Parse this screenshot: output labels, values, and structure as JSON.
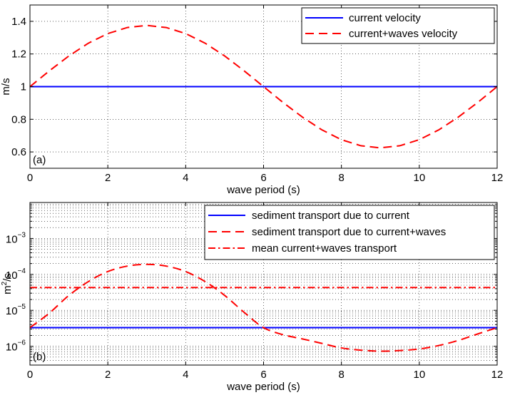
{
  "chart_data": [
    {
      "type": "line",
      "panel_label": "(a)",
      "xlabel": "wave period (s)",
      "ylabel": "m/s",
      "xlim": [
        0,
        12
      ],
      "ylim": [
        0.5,
        1.5
      ],
      "xticks": [
        0,
        2,
        4,
        6,
        8,
        10,
        12
      ],
      "yticks": [
        0.6,
        0.8,
        1,
        1.2,
        1.4
      ],
      "ytick_labels": [
        "0.6",
        "0.8",
        "1",
        "1.2",
        "1.4"
      ],
      "grid": "on",
      "legend_position": "top-right",
      "series": [
        {
          "name": "current velocity",
          "color": "#0000ff",
          "style": "solid",
          "x": [
            0,
            12
          ],
          "y": [
            1,
            1
          ]
        },
        {
          "name": "current+waves velocity",
          "color": "#ff0000",
          "style": "dashed",
          "x": [
            0,
            0.5,
            1,
            1.5,
            2,
            2.5,
            3,
            3.5,
            4,
            4.5,
            5,
            5.5,
            6,
            6.5,
            7,
            7.5,
            8,
            8.5,
            9,
            9.5,
            10,
            10.5,
            11,
            11.5,
            12
          ],
          "y": [
            1.0,
            1.097,
            1.188,
            1.266,
            1.325,
            1.362,
            1.375,
            1.362,
            1.325,
            1.266,
            1.188,
            1.097,
            1.0,
            0.903,
            0.813,
            0.735,
            0.675,
            0.638,
            0.625,
            0.638,
            0.675,
            0.735,
            0.813,
            0.903,
            1.0
          ]
        }
      ]
    },
    {
      "type": "line",
      "panel_label": "(b)",
      "xlabel": "wave period (s)",
      "ylabel_base": "m",
      "ylabel_sup": "2",
      "ylabel_rest": "/s",
      "xlim": [
        0,
        12
      ],
      "ylim": [
        3e-07,
        0.01
      ],
      "yscale": "log",
      "xticks": [
        0,
        2,
        4,
        6,
        8,
        10,
        12
      ],
      "ytick_exponents": [
        -6,
        -5,
        -4,
        -3
      ],
      "ytick_base": "10",
      "grid": "on (major and minor)",
      "legend_position": "top-right",
      "series": [
        {
          "name": "sediment transport due to current",
          "color": "#0000ff",
          "style": "solid",
          "x": [
            0,
            12
          ],
          "y": [
            3.3e-06,
            3.3e-06
          ]
        },
        {
          "name": "sediment transport due to current+waves",
          "color": "#ff0000",
          "style": "dashed",
          "x": [
            0,
            0.5,
            1,
            1.5,
            2,
            2.5,
            3,
            3.5,
            4,
            4.5,
            5,
            5.5,
            6,
            6.5,
            7,
            7.5,
            8,
            8.5,
            9,
            9.5,
            10,
            10.5,
            11,
            11.5,
            12
          ],
          "y": [
            3.3e-06,
            8.4e-06,
            2.6e-05,
            6.3e-05,
            0.00012,
            0.00017,
            0.00019,
            0.00017,
            0.00012,
            6.3e-05,
            2.6e-05,
            8.8e-06,
            3.3e-06,
            2.1e-06,
            1.6e-06,
            1.2e-06,
            9e-07,
            7.8e-07,
            7.3e-07,
            7.6e-07,
            8.4e-07,
            1.05e-06,
            1.45e-06,
            2.2e-06,
            3.3e-06
          ]
        },
        {
          "name": "mean current+waves transport",
          "color": "#ff0000",
          "style": "dashdot",
          "x": [
            0,
            12
          ],
          "y": [
            4.3e-05,
            4.3e-05
          ]
        }
      ]
    }
  ]
}
